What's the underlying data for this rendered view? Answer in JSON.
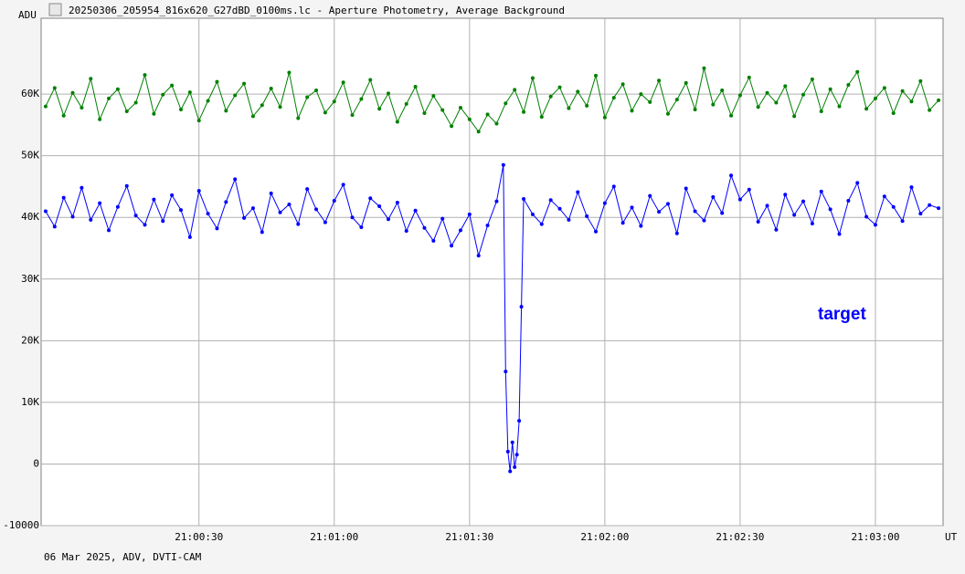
{
  "chart_data": {
    "type": "line",
    "title": "20250306_205954_816x620_G27dBD_0100ms.lc - Aperture Photometry, Average Background",
    "y_label": "ADU",
    "x_label": "UT",
    "footer": "06 Mar 2025, ADV, DVTI-CAM",
    "xlim": [
      75595,
      75795
    ],
    "ylim": [
      -10000,
      72300
    ],
    "grid": true,
    "xticks": [
      {
        "value": 75630,
        "label": "21:00:30"
      },
      {
        "value": 75660,
        "label": "21:01:00"
      },
      {
        "value": 75690,
        "label": "21:01:30"
      },
      {
        "value": 75720,
        "label": "21:02:00"
      },
      {
        "value": 75750,
        "label": "21:02:30"
      },
      {
        "value": 75780,
        "label": "21:03:00"
      }
    ],
    "yticks": [
      -10000,
      0,
      {
        "value": 10000,
        "label": "10K"
      },
      {
        "value": 20000,
        "label": "20K"
      },
      {
        "value": 30000,
        "label": "30K"
      },
      {
        "value": 40000,
        "label": "40K"
      },
      {
        "value": 50000,
        "label": "50K"
      },
      {
        "value": 60000,
        "label": "60K"
      }
    ],
    "series": [
      {
        "color": "#008000",
        "x": [
          75596,
          75598,
          75600,
          75602,
          75604,
          75606,
          75608,
          75610,
          75612,
          75614,
          75616,
          75618,
          75620,
          75622,
          75624,
          75626,
          75628,
          75630,
          75632,
          75634,
          75636,
          75638,
          75640,
          75642,
          75644,
          75646,
          75648,
          75650,
          75652,
          75654,
          75656,
          75658,
          75660,
          75662,
          75664,
          75666,
          75668,
          75670,
          75672,
          75674,
          75676,
          75678,
          75680,
          75682,
          75684,
          75686,
          75688,
          75690,
          75692,
          75694,
          75696,
          75698,
          75700,
          75702,
          75704,
          75706,
          75708,
          75710,
          75712,
          75714,
          75716,
          75718,
          75720,
          75722,
          75724,
          75726,
          75728,
          75730,
          75732,
          75734,
          75736,
          75738,
          75740,
          75742,
          75744,
          75746,
          75748,
          75750,
          75752,
          75754,
          75756,
          75758,
          75760,
          75762,
          75764,
          75766,
          75768,
          75770,
          75772,
          75774,
          75776,
          75778,
          75780,
          75782,
          75784,
          75786,
          75788,
          75790,
          75792,
          75794
        ],
        "values": [
          58000,
          61000,
          56500,
          60200,
          57800,
          62500,
          55900,
          59300,
          60800,
          57200,
          58600,
          63100,
          56800,
          59900,
          61400,
          57500,
          60300,
          55700,
          58900,
          62000,
          57300,
          59800,
          61700,
          56400,
          58200,
          60900,
          57900,
          63500,
          56100,
          59500,
          60600,
          57000,
          58800,
          61900,
          56600,
          59200,
          62300,
          57600,
          60100,
          55500,
          58400,
          61200,
          56900,
          59700,
          57400,
          54800,
          57800,
          55900,
          53900,
          56700,
          55200,
          58500,
          60700,
          57100,
          62600,
          56300,
          59600,
          61100,
          57700,
          60400,
          58100,
          63000,
          56200,
          59400,
          61600,
          57300,
          60000,
          58700,
          62200,
          56800,
          59100,
          61800,
          57500,
          64200,
          58300,
          60600,
          56500,
          59800,
          62700,
          57900,
          60200,
          58600,
          61300,
          56400,
          59900,
          62400,
          57200,
          60800,
          58000,
          61500,
          63600,
          57600,
          59300,
          61000,
          56900,
          60500,
          58800,
          62100,
          57400,
          59000
        ]
      },
      {
        "name": "target",
        "color": "#0000ff",
        "x": [
          75596,
          75598,
          75600,
          75602,
          75604,
          75606,
          75608,
          75610,
          75612,
          75614,
          75616,
          75618,
          75620,
          75622,
          75624,
          75626,
          75628,
          75630,
          75632,
          75634,
          75636,
          75638,
          75640,
          75642,
          75644,
          75646,
          75648,
          75650,
          75652,
          75654,
          75656,
          75658,
          75660,
          75662,
          75664,
          75666,
          75668,
          75670,
          75672,
          75674,
          75676,
          75678,
          75680,
          75682,
          75684,
          75686,
          75688,
          75690,
          75692,
          75694,
          75696,
          75697.5,
          75698,
          75698.5,
          75699,
          75699.5,
          75700,
          75700.5,
          75701,
          75701.5,
          75702,
          75704,
          75706,
          75708,
          75710,
          75712,
          75714,
          75716,
          75718,
          75720,
          75722,
          75724,
          75726,
          75728,
          75730,
          75732,
          75734,
          75736,
          75738,
          75740,
          75742,
          75744,
          75746,
          75748,
          75750,
          75752,
          75754,
          75756,
          75758,
          75760,
          75762,
          75764,
          75766,
          75768,
          75770,
          75772,
          75774,
          75776,
          75778,
          75780,
          75782,
          75784,
          75786,
          75788,
          75790,
          75792,
          75794
        ],
        "values": [
          41000,
          38500,
          43200,
          40100,
          44800,
          39600,
          42300,
          37900,
          41700,
          45100,
          40300,
          38800,
          42900,
          39400,
          43600,
          41200,
          36800,
          44300,
          40600,
          38200,
          42500,
          46200,
          39900,
          41500,
          37600,
          43900,
          40800,
          42100,
          38900,
          44600,
          41300,
          39200,
          42700,
          45300,
          40000,
          38400,
          43100,
          41800,
          39700,
          42400,
          37800,
          41100,
          38300,
          36200,
          39800,
          35400,
          37900,
          40500,
          33800,
          38700,
          42600,
          48500,
          15000,
          2000,
          -1200,
          3500,
          -500,
          1500,
          7000,
          25500,
          43000,
          40500,
          38900,
          42800,
          41400,
          39600,
          44100,
          40200,
          37700,
          42300,
          45000,
          39100,
          41600,
          38600,
          43500,
          40900,
          42200,
          37400,
          44700,
          41000,
          39500,
          43300,
          40700,
          46800,
          42900,
          44500,
          39300,
          41900,
          38000,
          43700,
          40400,
          42600,
          39000,
          44200,
          41300,
          37300,
          42700,
          45600,
          40100,
          38800,
          43400,
          41700,
          39400,
          44900,
          40600,
          42000,
          41500
        ]
      }
    ]
  }
}
